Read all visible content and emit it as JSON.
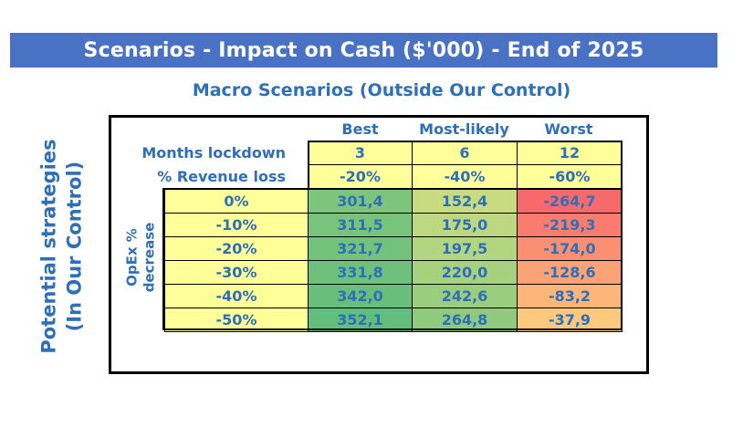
{
  "title": "Scenarios - Impact on Cash ($'000) - End of 2025",
  "subtitle": "Macro Scenarios (Outside Our Control)",
  "side_label": {
    "line1": "Potential strategies",
    "line2": "(In Our Control)"
  },
  "opex_label": {
    "line1": "OpEx %",
    "line2": "decrease"
  },
  "scenarios": [
    "Best",
    "Most-likely",
    "Worst"
  ],
  "months_label": "Months lockdown",
  "months": [
    "3",
    "6",
    "12"
  ],
  "revenue_label": "% Revenue loss",
  "revenue": [
    "-20%",
    "-40%",
    "-60%"
  ],
  "rows": [
    {
      "label": "0%",
      "values": [
        "301,4",
        "152,4",
        "-264,7"
      ]
    },
    {
      "label": "-10%",
      "values": [
        "311,5",
        "175,0",
        "-219,3"
      ]
    },
    {
      "label": "-20%",
      "values": [
        "321,7",
        "197,5",
        "-174,0"
      ]
    },
    {
      "label": "-30%",
      "values": [
        "331,8",
        "220,0",
        "-128,6"
      ]
    },
    {
      "label": "-40%",
      "values": [
        "342,0",
        "242,6",
        "-83,2"
      ]
    },
    {
      "label": "-50%",
      "values": [
        "352,1",
        "264,8",
        "-37,9"
      ]
    }
  ],
  "colors": {
    "banner": "#4a72c4",
    "text_blue": "#2e6fb8",
    "yellow": "#ffff99",
    "heat_high": "#63be7b",
    "heat_mid": "#ffeb84",
    "heat_low": "#f8696b"
  }
}
